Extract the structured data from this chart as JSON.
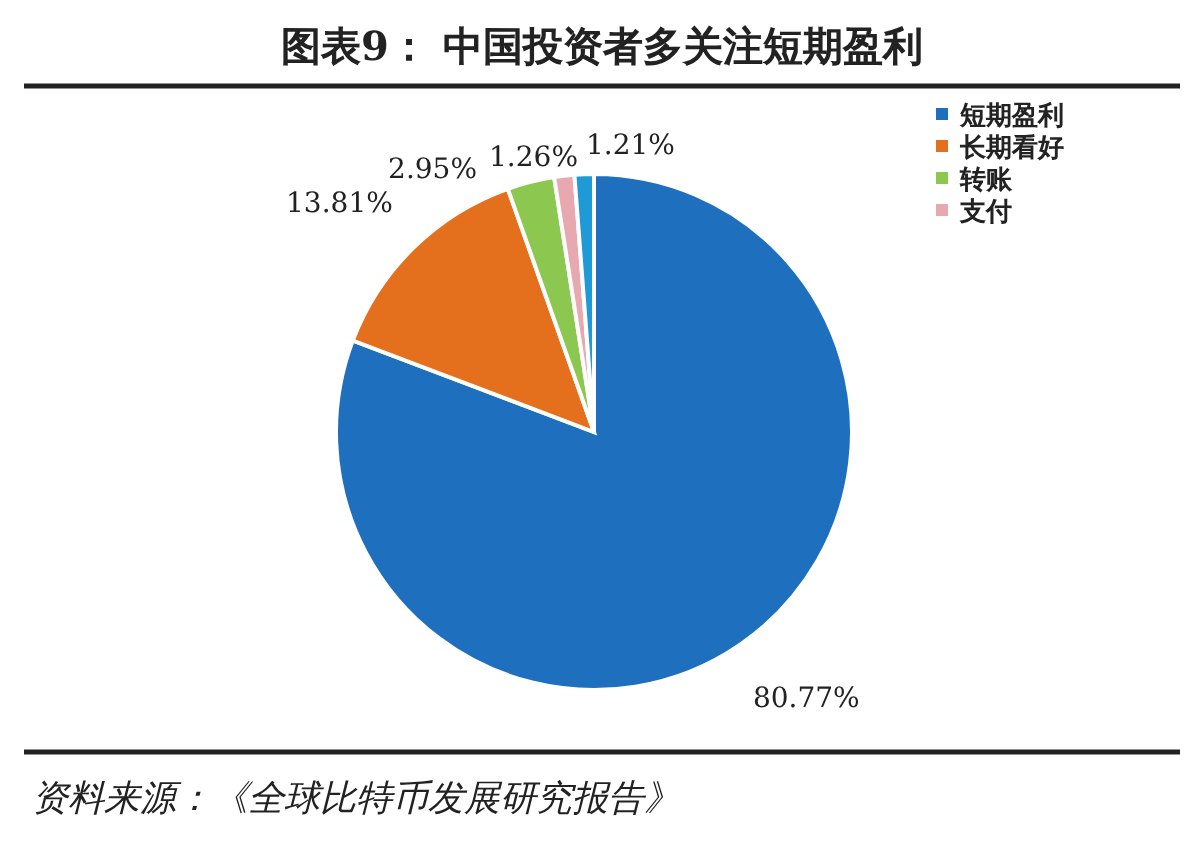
{
  "chart_data": {
    "type": "pie",
    "title": "图表9： 中国投资者多关注短期盈利",
    "categories": [
      "短期盈利",
      "长期看好",
      "转账",
      "支付",
      null
    ],
    "values": [
      80.77,
      13.81,
      2.95,
      1.26,
      1.21
    ],
    "colors": [
      "#1f6fbf",
      "#e4701e",
      "#8cc850",
      "#e8a8b0",
      "#1e9ad6"
    ],
    "value_labels": [
      "80.77%",
      "13.81%",
      "2.95%",
      "1.26%",
      "1.21%"
    ],
    "legend": "top right",
    "annotations": [
      "资料来源：《全球比特币发展研究报告》"
    ]
  }
}
